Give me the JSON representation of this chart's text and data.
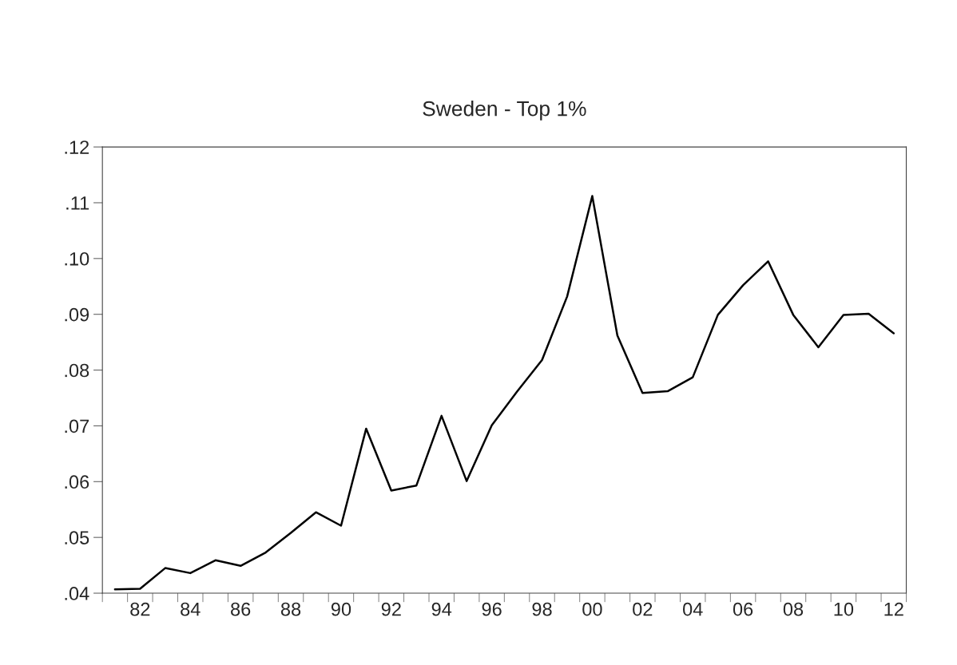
{
  "chart_data": {
    "type": "line",
    "title": "Sweden - Top 1%",
    "categories": [
      null,
      "82",
      null,
      "84",
      null,
      "86",
      null,
      "88",
      null,
      "90",
      null,
      "92",
      null,
      "94",
      null,
      "96",
      null,
      "98",
      null,
      "00",
      null,
      "02",
      null,
      "04",
      null,
      "06",
      null,
      "08",
      null,
      "10",
      null,
      "12"
    ],
    "series": [
      {
        "color": "#000000",
        "values": [
          0.0407,
          0.0408,
          0.0445,
          0.0436,
          0.0459,
          0.0449,
          0.0473,
          0.0508,
          0.0545,
          0.0521,
          0.0695,
          0.0584,
          0.0593,
          0.0718,
          0.0601,
          0.0701,
          0.0761,
          0.0818,
          0.0932,
          0.1112,
          0.0862,
          0.0759,
          0.0762,
          0.0787,
          0.0899,
          0.0952,
          0.0995,
          0.0899,
          0.0841,
          0.0899,
          0.0901,
          0.0866
        ]
      }
    ],
    "ylim": [
      0.04,
      0.12
    ],
    "yticks": [
      {
        "value": 0.04,
        "label": ".04"
      },
      {
        "value": 0.05,
        "label": ".05"
      },
      {
        "value": 0.06,
        "label": ".06"
      },
      {
        "value": 0.07,
        "label": ".07"
      },
      {
        "value": 0.08,
        "label": ".08"
      },
      {
        "value": 0.09,
        "label": ".09"
      },
      {
        "value": 0.1,
        "label": ".10"
      },
      {
        "value": 0.11,
        "label": ".11"
      },
      {
        "value": 0.12,
        "label": ".12"
      }
    ],
    "grid": false,
    "legend": false,
    "marker": "none",
    "line_style": "solid"
  }
}
